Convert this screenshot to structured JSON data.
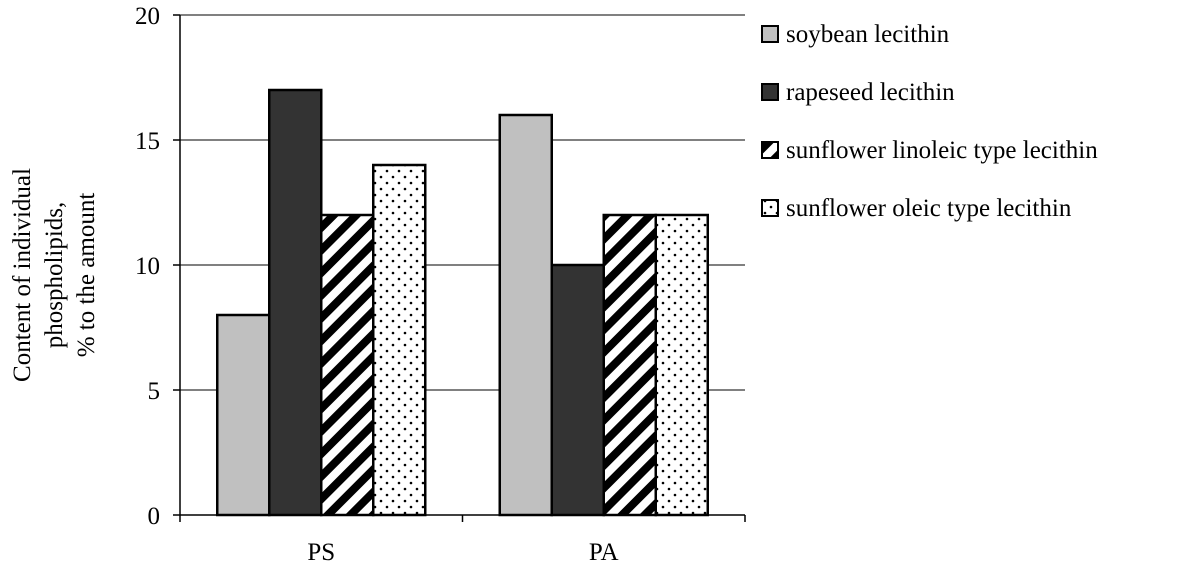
{
  "chart_data": {
    "type": "bar",
    "categories": [
      "PS",
      "PA"
    ],
    "series": [
      {
        "name": "soybean lecithin",
        "values": [
          8,
          16
        ],
        "pattern": "solid",
        "color": "#c0c0c0"
      },
      {
        "name": "rapeseed lecithin",
        "values": [
          17,
          10
        ],
        "pattern": "solid",
        "color": "#333333"
      },
      {
        "name": "sunflower linoleic type lecithin",
        "values": [
          12,
          12
        ],
        "pattern": "diagonal-stripes",
        "color": "#000000"
      },
      {
        "name": "sunflower oleic type lecithin",
        "values": [
          14,
          12
        ],
        "pattern": "dots",
        "color": "#000000"
      }
    ],
    "ylabel_lines": [
      "Content of individual",
      "phospholipids,",
      "% to the amount"
    ],
    "xlabel": "",
    "ylim": [
      0,
      20
    ],
    "yticks": [
      0,
      5,
      10,
      15,
      20
    ],
    "grid": true,
    "legend_position": "right"
  }
}
